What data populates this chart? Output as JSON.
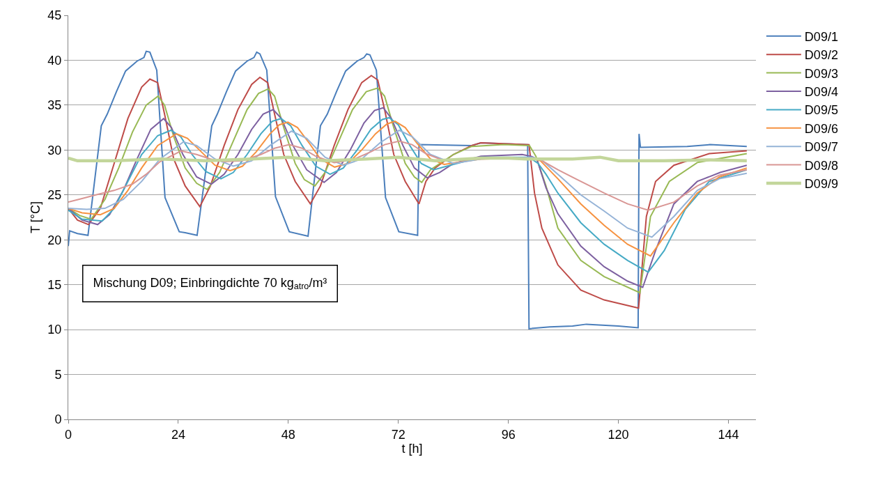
{
  "chart_data": {
    "type": "line",
    "xlabel": "t [h]",
    "ylabel": "T [°C]",
    "xlim": [
      0,
      150
    ],
    "xticks": [
      0,
      24,
      48,
      72,
      96,
      120,
      144
    ],
    "ylim": [
      0,
      45
    ],
    "yticks": [
      0,
      5,
      10,
      15,
      20,
      25,
      30,
      35,
      40,
      45
    ],
    "grid": "y",
    "legend": "right",
    "annotations": [
      "Mischung D09; Einbringdichte 70 kg$_{atro}$/m³"
    ],
    "series": [
      {
        "name": "D09/1",
        "color": "#4a7ebb",
        "x": [
          0,
          0.3,
          2,
          4.3,
          7.2,
          8.5,
          10.5,
          12.5,
          15,
          16.5,
          17,
          17.8,
          19.3,
          21.1,
          24.2,
          25.5,
          28.1,
          31.3,
          32.5,
          34.5,
          36.5,
          39,
          40.5,
          41.1,
          41.8,
          43.3,
          45.2,
          48.2,
          52.3,
          55,
          56.5,
          58.5,
          60.5,
          63,
          64.5,
          65.1,
          65.8,
          67.2,
          69.2,
          72.1,
          76.2,
          76.5,
          88,
          90,
          100.2,
          100.5,
          105,
          110,
          113,
          120,
          124.3,
          124.5,
          124.8,
          135,
          140,
          148
        ],
        "values": [
          19.3,
          21,
          20.7,
          20.5,
          32.7,
          34,
          36.5,
          38.8,
          39.9,
          40.3,
          41,
          40.9,
          38.9,
          24.7,
          20.9,
          20.8,
          20.5,
          32.7,
          34,
          36.5,
          38.8,
          39.9,
          40.3,
          40.9,
          40.7,
          38.9,
          24.8,
          20.9,
          20.4,
          32.7,
          34,
          36.5,
          38.8,
          39.9,
          40.3,
          40.7,
          40.6,
          38.9,
          24.7,
          20.9,
          20.5,
          30.6,
          30.5,
          30.8,
          30.6,
          10.1,
          10.3,
          10.4,
          10.6,
          10.4,
          10.2,
          31.8,
          30.3,
          30.4,
          30.6,
          30.4
        ]
      },
      {
        "name": "D09/2",
        "color": "#be4b48",
        "x": [
          0,
          2,
          4.4,
          7,
          10,
          13,
          16,
          17.8,
          19.5,
          21,
          23,
          25.5,
          28.7,
          31,
          34,
          37,
          40,
          41.8,
          43.5,
          45,
          47,
          49.5,
          52.8,
          55,
          58,
          61,
          64,
          66.1,
          67.5,
          69,
          71,
          73.5,
          76.5,
          78,
          80,
          84,
          88,
          90,
          95,
          100.5,
          101.7,
          103.3,
          106.8,
          111.8,
          116.9,
          124.4,
          126.1,
          128.1,
          132.1,
          139.8,
          148
        ],
        "values": [
          23.5,
          22.2,
          21.7,
          23.5,
          28.5,
          33.5,
          37,
          37.9,
          37.5,
          34,
          29,
          26,
          23.7,
          26,
          30.5,
          34.5,
          37.3,
          38.1,
          37.5,
          34,
          29.5,
          26.5,
          24,
          26,
          30.5,
          34.5,
          37.5,
          38.3,
          37.8,
          34.5,
          29.5,
          26.5,
          24,
          26.5,
          28,
          29.5,
          30.5,
          30.8,
          30.7,
          30.6,
          25.2,
          21.3,
          17.2,
          14.4,
          13.3,
          12.4,
          22.6,
          26.5,
          28.3,
          29.6,
          29.9
        ]
      },
      {
        "name": "D09/3",
        "color": "#98b954",
        "x": [
          0,
          2.5,
          5,
          8,
          11,
          14,
          17,
          19.6,
          21,
          23,
          25.5,
          28,
          30.3,
          33,
          36,
          39,
          41.5,
          43.6,
          45,
          47,
          49.5,
          51.5,
          53.8,
          56,
          59,
          62,
          65,
          67.5,
          69,
          71,
          73.5,
          75.5,
          77.1,
          79,
          84,
          88,
          95,
          100.6,
          102,
          104.2,
          106.8,
          111.8,
          116.9,
          124.7,
          127,
          131.1,
          137.2,
          148
        ],
        "values": [
          23.5,
          22.7,
          22.3,
          24.5,
          28,
          32,
          35,
          36,
          35,
          31.5,
          28,
          26.3,
          25.6,
          27.5,
          31,
          34.5,
          36.3,
          36.8,
          36,
          32.5,
          28.5,
          26.7,
          26,
          27.5,
          31,
          34.5,
          36.5,
          36.9,
          36,
          32.5,
          28.5,
          27,
          26.4,
          27.8,
          29.5,
          30.4,
          30.6,
          30.5,
          29.3,
          26,
          21.3,
          17.7,
          15.9,
          14.1,
          22.6,
          26.5,
          28.6,
          29.6
        ]
      },
      {
        "name": "D09/4",
        "color": "#7d60a0",
        "x": [
          0,
          3,
          6.4,
          9,
          12,
          15,
          18,
          20.8,
          22.5,
          25,
          28,
          31.2,
          34,
          37,
          40,
          42.5,
          44.7,
          46.5,
          49,
          52,
          55.8,
          58.5,
          61.5,
          64.5,
          66.8,
          68.7,
          70.5,
          73,
          75.5,
          78.3,
          81,
          84,
          90,
          99,
          101,
          102.2,
          104.2,
          106.8,
          111.8,
          116.9,
          122,
          125.3,
          128.1,
          132.1,
          137.2,
          142.2,
          148
        ],
        "values": [
          23.5,
          22.2,
          21.7,
          22.8,
          25.5,
          29,
          32.3,
          33.5,
          32.5,
          29.5,
          27,
          26.2,
          27.3,
          29.5,
          32.3,
          34,
          34.5,
          33.5,
          30.5,
          27.8,
          26.4,
          27.5,
          30,
          33,
          34.4,
          34.7,
          33.5,
          30.5,
          28,
          26.9,
          27.5,
          28.5,
          29.3,
          29.5,
          29.3,
          29,
          25.8,
          22.9,
          19.3,
          17,
          15.4,
          14.7,
          18.8,
          24,
          26.5,
          27.5,
          28.3
        ]
      },
      {
        "name": "D09/5",
        "color": "#46aac5",
        "x": [
          0,
          3,
          7.4,
          10,
          13,
          16,
          19.5,
          22.4,
          24.5,
          27,
          30,
          33.3,
          36,
          39,
          42,
          44.5,
          46.4,
          48.5,
          51,
          54,
          57.1,
          60,
          63,
          66,
          68.5,
          70,
          72,
          74.5,
          77,
          79.7,
          84,
          90,
          100.5,
          102.5,
          104.2,
          106.8,
          111.8,
          116.9,
          122,
          126.5,
          130,
          134.6,
          139.8,
          148
        ],
        "values": [
          23.3,
          22.3,
          22.1,
          23.5,
          26.5,
          29.5,
          31.6,
          32.2,
          31.5,
          29.5,
          27.6,
          26.8,
          27.5,
          29.5,
          31.8,
          33.2,
          33.5,
          32.7,
          30.5,
          28.2,
          27.3,
          28,
          30,
          32.3,
          33.4,
          33.6,
          32.8,
          30.5,
          28.5,
          27.8,
          28.4,
          29.2,
          29.2,
          28.5,
          27.3,
          25.2,
          21.9,
          19.5,
          17.7,
          16.4,
          18.8,
          23.4,
          26.5,
          27.8
        ]
      },
      {
        "name": "D09/6",
        "color": "#f69240",
        "x": [
          0,
          3,
          7,
          10,
          13,
          16,
          19.5,
          23.6,
          26,
          29,
          32,
          35.3,
          38,
          41,
          44,
          46,
          47.9,
          50,
          52.5,
          55,
          58.1,
          61,
          64,
          67,
          69.5,
          71.3,
          73.5,
          76,
          79,
          82,
          90,
          101,
          103,
          106.8,
          111.8,
          116.9,
          122,
          127,
          132.1,
          137.2,
          142,
          148
        ],
        "values": [
          23.5,
          23,
          22.8,
          23.5,
          25.5,
          28,
          30.5,
          31.8,
          31.3,
          29.8,
          28.3,
          27.7,
          28.2,
          29.8,
          31.8,
          32.8,
          33.1,
          32.5,
          30.8,
          29,
          28.1,
          28.5,
          30,
          31.8,
          32.9,
          33.2,
          32.5,
          30.8,
          29,
          28.4,
          29,
          29.1,
          28.8,
          26.8,
          24,
          21.6,
          19.5,
          18.2,
          21.9,
          25.2,
          27,
          28
        ]
      },
      {
        "name": "D09/7",
        "color": "#95b3d7",
        "x": [
          0,
          4,
          8,
          12,
          16,
          20,
          25.1,
          28,
          32,
          36,
          40,
          44,
          48.7,
          52,
          56,
          60,
          64,
          68,
          72.2,
          75,
          79,
          84,
          90,
          101,
          103,
          106.8,
          111.8,
          116.9,
          122,
          127.3,
          132.1,
          137.2,
          142,
          148
        ],
        "values": [
          23.5,
          23.4,
          23.5,
          24.5,
          26.5,
          29,
          30.9,
          30.5,
          29,
          28.2,
          28.8,
          30.5,
          32.1,
          31.3,
          29.2,
          28.3,
          29,
          30.8,
          32.2,
          31.5,
          29.5,
          28.5,
          29,
          29.2,
          29,
          27.3,
          25,
          23.2,
          21.3,
          20.3,
          22.6,
          25.5,
          26.8,
          27.4
        ]
      },
      {
        "name": "D09/8",
        "color": "#d99694",
        "x": [
          0,
          3,
          6,
          10,
          14,
          17,
          20,
          24.6,
          28,
          31,
          34,
          38,
          42,
          45,
          48.2,
          51,
          54,
          58,
          62,
          66,
          69,
          72.2,
          75,
          78,
          82,
          90,
          101,
          103,
          106.8,
          111.8,
          116.9,
          122,
          126.5,
          132.1,
          137.2,
          142,
          148
        ],
        "values": [
          24.2,
          24.6,
          25,
          25.5,
          26.2,
          27.3,
          28.7,
          29.9,
          29.5,
          29,
          28.7,
          28.8,
          29.5,
          30.2,
          30.6,
          30.2,
          29.3,
          28.6,
          28.9,
          29.8,
          30.6,
          31,
          30.6,
          29.6,
          28.8,
          29,
          29.1,
          28.9,
          27.8,
          26.5,
          25.2,
          24,
          23.3,
          24.2,
          26,
          27.2,
          27.8
        ]
      },
      {
        "name": "D09/9",
        "color": "#c3d69b",
        "x": [
          0,
          2,
          10,
          20,
          30,
          40,
          48,
          56,
          65,
          72,
          80,
          90,
          96,
          100,
          110,
          116,
          120,
          130,
          140,
          148
        ],
        "values": [
          29.1,
          28.8,
          28.8,
          29,
          28.8,
          29,
          29.2,
          28.8,
          29,
          29.2,
          28.8,
          29.1,
          29.1,
          29,
          29,
          29.2,
          28.8,
          28.8,
          28.9,
          28.8
        ]
      }
    ]
  }
}
